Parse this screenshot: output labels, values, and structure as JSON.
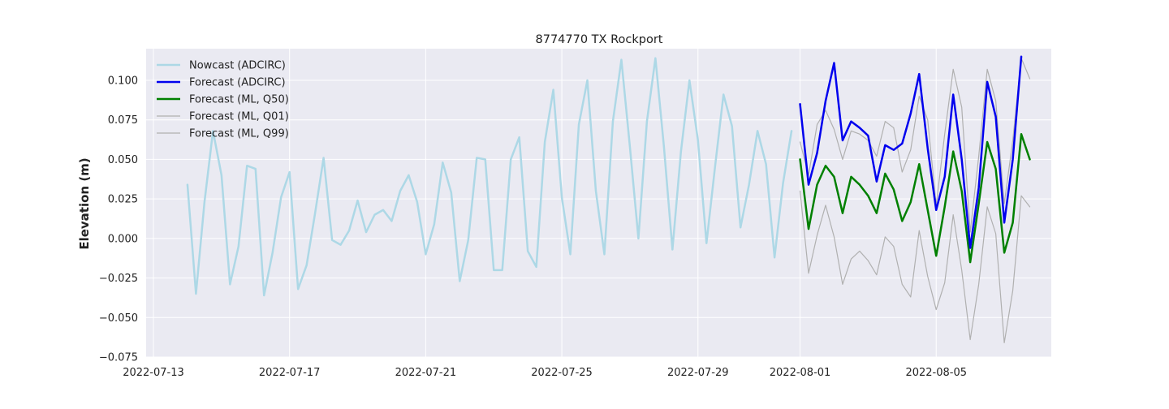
{
  "chart_data": {
    "type": "line",
    "title": "8774770 TX Rockport",
    "xlabel": "",
    "ylabel": "Elevation (m)",
    "ylim": [
      -0.075,
      0.12
    ],
    "xlim": [
      "2022-07-13",
      "2022-08-08"
    ],
    "grid": true,
    "legend_position": "top-left",
    "x_ticks": [
      "2022-07-13",
      "2022-07-17",
      "2022-07-21",
      "2022-07-25",
      "2022-07-29",
      "2022-08-01",
      "2022-08-05"
    ],
    "y_ticks": [
      -0.075,
      -0.05,
      -0.025,
      0.0,
      0.025,
      0.05,
      0.075,
      0.1
    ],
    "y_tick_labels": [
      "−0.075",
      "−0.050",
      "−0.025",
      "0.000",
      "0.025",
      "0.050",
      "0.075",
      "0.100"
    ],
    "colors": {
      "background": "#eaeaf2",
      "grid": "#ffffff",
      "nowcast": "#add8e6",
      "forecast_adcirc": "#0000ee",
      "forecast_ml_q50": "#008000",
      "forecast_ml_q01": "#b0b0b0",
      "forecast_ml_q99": "#b0b0b0"
    },
    "series": [
      {
        "name": "Nowcast (ADCIRC)",
        "color_key": "nowcast",
        "width": 2.5,
        "points": [
          [
            "2022-07-14T00:00",
            0.034
          ],
          [
            "2022-07-14T06:00",
            -0.035
          ],
          [
            "2022-07-14T12:00",
            0.023
          ],
          [
            "2022-07-14T18:00",
            0.068
          ],
          [
            "2022-07-15T00:00",
            0.04
          ],
          [
            "2022-07-15T06:00",
            -0.029
          ],
          [
            "2022-07-15T12:00",
            -0.005
          ],
          [
            "2022-07-15T18:00",
            0.046
          ],
          [
            "2022-07-16T00:00",
            0.044
          ],
          [
            "2022-07-16T06:00",
            -0.036
          ],
          [
            "2022-07-16T12:00",
            -0.009
          ],
          [
            "2022-07-16T18:00",
            0.026
          ],
          [
            "2022-07-17T00:00",
            0.042
          ],
          [
            "2022-07-17T06:00",
            -0.032
          ],
          [
            "2022-07-17T12:00",
            -0.017
          ],
          [
            "2022-07-17T18:00",
            0.016
          ],
          [
            "2022-07-18T00:00",
            0.051
          ],
          [
            "2022-07-18T06:00",
            -0.001
          ],
          [
            "2022-07-18T12:00",
            -0.004
          ],
          [
            "2022-07-18T18:00",
            0.005
          ],
          [
            "2022-07-19T00:00",
            0.024
          ],
          [
            "2022-07-19T06:00",
            0.004
          ],
          [
            "2022-07-19T12:00",
            0.015
          ],
          [
            "2022-07-19T18:00",
            0.018
          ],
          [
            "2022-07-20T00:00",
            0.011
          ],
          [
            "2022-07-20T06:00",
            0.03
          ],
          [
            "2022-07-20T12:00",
            0.04
          ],
          [
            "2022-07-20T18:00",
            0.023
          ],
          [
            "2022-07-21T00:00",
            -0.01
          ],
          [
            "2022-07-21T06:00",
            0.009
          ],
          [
            "2022-07-21T12:00",
            0.048
          ],
          [
            "2022-07-21T18:00",
            0.029
          ],
          [
            "2022-07-22T00:00",
            -0.027
          ],
          [
            "2022-07-22T06:00",
            -0.001
          ],
          [
            "2022-07-22T12:00",
            0.051
          ],
          [
            "2022-07-22T18:00",
            0.05
          ],
          [
            "2022-07-23T00:00",
            -0.02
          ],
          [
            "2022-07-23T06:00",
            -0.02
          ],
          [
            "2022-07-23T12:00",
            0.05
          ],
          [
            "2022-07-23T18:00",
            0.064
          ],
          [
            "2022-07-24T00:00",
            -0.008
          ],
          [
            "2022-07-24T06:00",
            -0.018
          ],
          [
            "2022-07-24T12:00",
            0.061
          ],
          [
            "2022-07-24T18:00",
            0.094
          ],
          [
            "2022-07-25T00:00",
            0.026
          ],
          [
            "2022-07-25T06:00",
            -0.01
          ],
          [
            "2022-07-25T12:00",
            0.072
          ],
          [
            "2022-07-25T18:00",
            0.1
          ],
          [
            "2022-07-26T00:00",
            0.03
          ],
          [
            "2022-07-26T06:00",
            -0.01
          ],
          [
            "2022-07-26T12:00",
            0.074
          ],
          [
            "2022-07-26T18:00",
            0.113
          ],
          [
            "2022-07-27T00:00",
            0.058
          ],
          [
            "2022-07-27T06:00",
            0.0
          ],
          [
            "2022-07-27T12:00",
            0.074
          ],
          [
            "2022-07-27T18:00",
            0.114
          ],
          [
            "2022-07-28T00:00",
            0.058
          ],
          [
            "2022-07-28T06:00",
            -0.007
          ],
          [
            "2022-07-28T12:00",
            0.055
          ],
          [
            "2022-07-28T18:00",
            0.1
          ],
          [
            "2022-07-29T00:00",
            0.062
          ],
          [
            "2022-07-29T06:00",
            -0.003
          ],
          [
            "2022-07-29T12:00",
            0.045
          ],
          [
            "2022-07-29T18:00",
            0.091
          ],
          [
            "2022-07-30T00:00",
            0.071
          ],
          [
            "2022-07-30T06:00",
            0.007
          ],
          [
            "2022-07-30T12:00",
            0.034
          ],
          [
            "2022-07-30T18:00",
            0.068
          ],
          [
            "2022-07-31T00:00",
            0.047
          ],
          [
            "2022-07-31T06:00",
            -0.012
          ],
          [
            "2022-07-31T12:00",
            0.035
          ],
          [
            "2022-07-31T18:00",
            0.068
          ]
        ]
      },
      {
        "name": "Forecast (ADCIRC)",
        "color_key": "forecast_adcirc",
        "width": 2.5,
        "points": [
          [
            "2022-08-01T00:00",
            0.085
          ],
          [
            "2022-08-01T06:00",
            0.034
          ],
          [
            "2022-08-01T12:00",
            0.054
          ],
          [
            "2022-08-01T18:00",
            0.087
          ],
          [
            "2022-08-02T00:00",
            0.111
          ],
          [
            "2022-08-02T06:00",
            0.062
          ],
          [
            "2022-08-02T12:00",
            0.074
          ],
          [
            "2022-08-02T18:00",
            0.07
          ],
          [
            "2022-08-03T00:00",
            0.065
          ],
          [
            "2022-08-03T06:00",
            0.036
          ],
          [
            "2022-08-03T12:00",
            0.059
          ],
          [
            "2022-08-03T18:00",
            0.056
          ],
          [
            "2022-08-04T00:00",
            0.06
          ],
          [
            "2022-08-04T06:00",
            0.079
          ],
          [
            "2022-08-04T12:00",
            0.104
          ],
          [
            "2022-08-04T18:00",
            0.057
          ],
          [
            "2022-08-05T00:00",
            0.018
          ],
          [
            "2022-08-05T06:00",
            0.039
          ],
          [
            "2022-08-05T12:00",
            0.091
          ],
          [
            "2022-08-05T18:00",
            0.05
          ],
          [
            "2022-08-06T00:00",
            -0.006
          ],
          [
            "2022-08-06T06:00",
            0.032
          ],
          [
            "2022-08-06T12:00",
            0.099
          ],
          [
            "2022-08-06T18:00",
            0.077
          ],
          [
            "2022-08-07T00:00",
            0.01
          ],
          [
            "2022-08-07T06:00",
            0.05
          ],
          [
            "2022-08-07T12:00",
            0.115
          ]
        ]
      },
      {
        "name": "Forecast (ML, Q50)",
        "color_key": "forecast_ml_q50",
        "width": 2.5,
        "points": [
          [
            "2022-08-01T00:00",
            0.05
          ],
          [
            "2022-08-01T06:00",
            0.006
          ],
          [
            "2022-08-01T12:00",
            0.034
          ],
          [
            "2022-08-01T18:00",
            0.046
          ],
          [
            "2022-08-02T00:00",
            0.039
          ],
          [
            "2022-08-02T06:00",
            0.016
          ],
          [
            "2022-08-02T12:00",
            0.039
          ],
          [
            "2022-08-02T18:00",
            0.034
          ],
          [
            "2022-08-03T00:00",
            0.027
          ],
          [
            "2022-08-03T06:00",
            0.016
          ],
          [
            "2022-08-03T12:00",
            0.041
          ],
          [
            "2022-08-03T18:00",
            0.031
          ],
          [
            "2022-08-04T00:00",
            0.011
          ],
          [
            "2022-08-04T06:00",
            0.023
          ],
          [
            "2022-08-04T12:00",
            0.047
          ],
          [
            "2022-08-04T18:00",
            0.018
          ],
          [
            "2022-08-05T00:00",
            -0.011
          ],
          [
            "2022-08-05T06:00",
            0.02
          ],
          [
            "2022-08-05T12:00",
            0.055
          ],
          [
            "2022-08-05T18:00",
            0.03
          ],
          [
            "2022-08-06T00:00",
            -0.015
          ],
          [
            "2022-08-06T06:00",
            0.022
          ],
          [
            "2022-08-06T12:00",
            0.061
          ],
          [
            "2022-08-06T18:00",
            0.044
          ],
          [
            "2022-08-07T00:00",
            -0.009
          ],
          [
            "2022-08-07T06:00",
            0.01
          ],
          [
            "2022-08-07T12:00",
            0.066
          ],
          [
            "2022-08-07T18:00",
            0.05
          ]
        ]
      },
      {
        "name": "Forecast (ML, Q01)",
        "color_key": "forecast_ml_q01",
        "width": 1.2,
        "points": [
          [
            "2022-08-01T00:00",
            0.03
          ],
          [
            "2022-08-01T06:00",
            -0.022
          ],
          [
            "2022-08-01T12:00",
            0.002
          ],
          [
            "2022-08-01T18:00",
            0.021
          ],
          [
            "2022-08-02T00:00",
            0.001
          ],
          [
            "2022-08-02T06:00",
            -0.029
          ],
          [
            "2022-08-02T12:00",
            -0.013
          ],
          [
            "2022-08-02T18:00",
            -0.008
          ],
          [
            "2022-08-03T00:00",
            -0.014
          ],
          [
            "2022-08-03T06:00",
            -0.023
          ],
          [
            "2022-08-03T12:00",
            0.001
          ],
          [
            "2022-08-03T18:00",
            -0.005
          ],
          [
            "2022-08-04T00:00",
            -0.029
          ],
          [
            "2022-08-04T06:00",
            -0.037
          ],
          [
            "2022-08-04T12:00",
            0.005
          ],
          [
            "2022-08-04T18:00",
            -0.024
          ],
          [
            "2022-08-05T00:00",
            -0.045
          ],
          [
            "2022-08-05T06:00",
            -0.028
          ],
          [
            "2022-08-05T12:00",
            0.015
          ],
          [
            "2022-08-05T18:00",
            -0.02
          ],
          [
            "2022-08-06T00:00",
            -0.064
          ],
          [
            "2022-08-06T06:00",
            -0.029
          ],
          [
            "2022-08-06T12:00",
            0.02
          ],
          [
            "2022-08-06T18:00",
            0.003
          ],
          [
            "2022-08-07T00:00",
            -0.066
          ],
          [
            "2022-08-07T06:00",
            -0.033
          ],
          [
            "2022-08-07T12:00",
            0.027
          ],
          [
            "2022-08-07T18:00",
            0.02
          ]
        ]
      },
      {
        "name": "Forecast (ML, Q99)",
        "color_key": "forecast_ml_q99",
        "width": 1.2,
        "points": [
          [
            "2022-08-01T00:00",
            0.061
          ],
          [
            "2022-08-01T06:00",
            0.04
          ],
          [
            "2022-08-01T12:00",
            0.072
          ],
          [
            "2022-08-01T18:00",
            0.081
          ],
          [
            "2022-08-02T00:00",
            0.069
          ],
          [
            "2022-08-02T06:00",
            0.05
          ],
          [
            "2022-08-02T12:00",
            0.068
          ],
          [
            "2022-08-02T18:00",
            0.066
          ],
          [
            "2022-08-03T00:00",
            0.062
          ],
          [
            "2022-08-03T06:00",
            0.052
          ],
          [
            "2022-08-03T12:00",
            0.074
          ],
          [
            "2022-08-03T18:00",
            0.07
          ],
          [
            "2022-08-04T00:00",
            0.042
          ],
          [
            "2022-08-04T06:00",
            0.056
          ],
          [
            "2022-08-04T12:00",
            0.09
          ],
          [
            "2022-08-04T18:00",
            0.075
          ],
          [
            "2022-08-05T00:00",
            0.021
          ],
          [
            "2022-08-05T06:00",
            0.066
          ],
          [
            "2022-08-05T12:00",
            0.107
          ],
          [
            "2022-08-05T18:00",
            0.083
          ],
          [
            "2022-08-06T00:00",
            0.004
          ],
          [
            "2022-08-06T06:00",
            0.052
          ],
          [
            "2022-08-06T12:00",
            0.107
          ],
          [
            "2022-08-06T18:00",
            0.087
          ],
          [
            "2022-08-07T00:00",
            0.022
          ],
          [
            "2022-08-07T06:00",
            0.062
          ],
          [
            "2022-08-07T12:00",
            0.114
          ],
          [
            "2022-08-07T18:00",
            0.101
          ]
        ]
      }
    ]
  }
}
